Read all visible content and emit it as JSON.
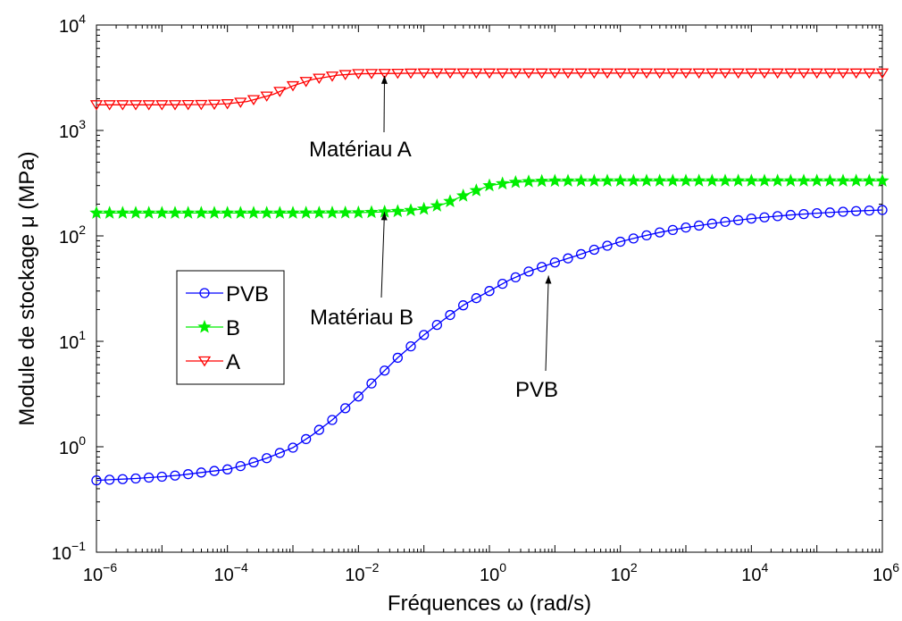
{
  "chart_data": {
    "type": "line",
    "title": "",
    "xlabel": "Fréquences  ω (rad/s)",
    "ylabel": "Module de stockage  μ (MPa)",
    "xscale": "log",
    "yscale": "log",
    "xlim": [
      1e-06,
      1000000.0
    ],
    "ylim": [
      0.1,
      10000
    ],
    "x_ticks": [
      {
        "base": "10",
        "exp": "−6",
        "value": 1e-06
      },
      {
        "base": "10",
        "exp": "−4",
        "value": 0.0001
      },
      {
        "base": "10",
        "exp": "−2",
        "value": 0.01
      },
      {
        "base": "10",
        "exp": "0",
        "value": 1
      },
      {
        "base": "10",
        "exp": "2",
        "value": 100
      },
      {
        "base": "10",
        "exp": "4",
        "value": 10000
      },
      {
        "base": "10",
        "exp": "6",
        "value": 1000000
      }
    ],
    "y_ticks": [
      {
        "base": "10",
        "exp": "−1",
        "value": 0.1
      },
      {
        "base": "10",
        "exp": "0",
        "value": 1
      },
      {
        "base": "10",
        "exp": "1",
        "value": 10
      },
      {
        "base": "10",
        "exp": "2",
        "value": 100
      },
      {
        "base": "10",
        "exp": "3",
        "value": 1000
      },
      {
        "base": "10",
        "exp": "4",
        "value": 10000
      }
    ],
    "grid": false,
    "legend_position": "left-center",
    "series": [
      {
        "name": "PVB",
        "color": "#0000ff",
        "marker": "circle",
        "x": [
          1e-06,
          2e-06,
          4e-06,
          1e-05,
          2e-05,
          4e-05,
          0.0001,
          0.0002,
          0.0004,
          0.001,
          0.002,
          0.004,
          0.01,
          0.02,
          0.04,
          0.1,
          0.2,
          0.4,
          1,
          2,
          4,
          10,
          20,
          40,
          100,
          200,
          400,
          1000,
          2000,
          4000,
          10000,
          20000,
          40000,
          100000,
          200000,
          400000,
          1000000
        ],
        "y": [
          0.48,
          0.49,
          0.5,
          0.52,
          0.54,
          0.57,
          0.61,
          0.68,
          0.78,
          0.98,
          1.3,
          1.8,
          3.0,
          4.6,
          7.0,
          11.5,
          16,
          22,
          30,
          38,
          46,
          56,
          64,
          74,
          88,
          98,
          108,
          120,
          128,
          136,
          146,
          152,
          158,
          164,
          168,
          172,
          176
        ]
      },
      {
        "name": "B",
        "color": "#00ee00",
        "marker": "star",
        "x": [
          1e-06,
          1e-05,
          0.0001,
          0.001,
          0.01,
          0.02,
          0.05,
          0.1,
          0.2,
          0.5,
          1,
          2,
          5,
          10,
          100,
          1000,
          10000,
          100000,
          1000000
        ],
        "y": [
          165,
          165,
          165,
          165,
          166,
          168,
          172,
          180,
          200,
          255,
          300,
          320,
          330,
          332,
          333,
          333,
          333,
          333,
          333
        ]
      },
      {
        "name": "A",
        "color": "#ff0000",
        "marker": "triangle-down",
        "x": [
          1e-06,
          1e-05,
          5e-05,
          0.0001,
          0.0002,
          0.0005,
          0.001,
          0.002,
          0.005,
          0.01,
          0.1,
          1,
          10,
          100,
          1000,
          10000,
          100000,
          1000000
        ],
        "y": [
          1750,
          1750,
          1760,
          1790,
          1880,
          2200,
          2650,
          3050,
          3350,
          3450,
          3500,
          3500,
          3500,
          3500,
          3500,
          3500,
          3500,
          3500
        ]
      }
    ],
    "annotations": [
      {
        "text": "Matériau A",
        "x": 0.025,
        "y": 3300
      },
      {
        "text": "Matériau B",
        "x": 0.025,
        "y": 168
      },
      {
        "text": "PVB",
        "x": 8,
        "y": 42
      }
    ]
  }
}
